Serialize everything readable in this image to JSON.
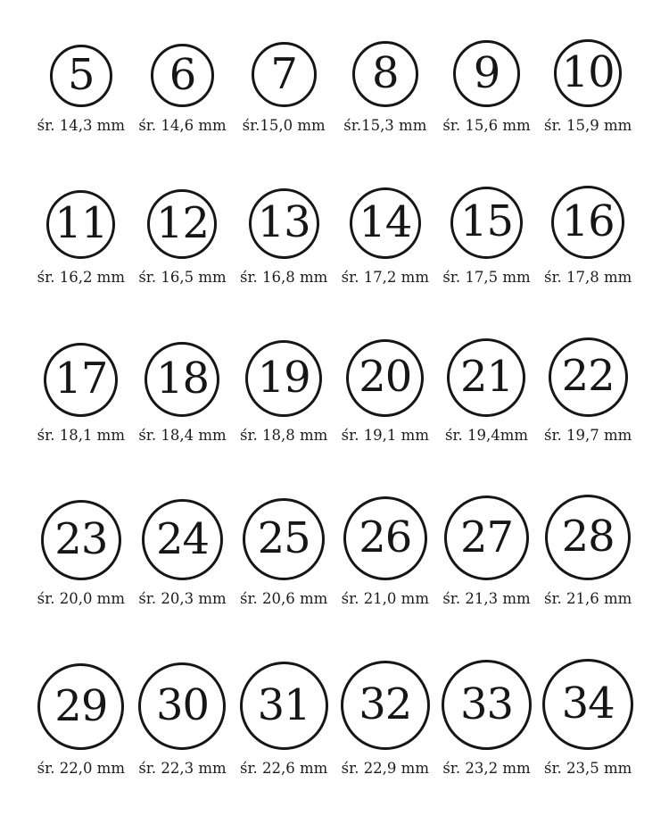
{
  "page": {
    "background_color": "#ffffff",
    "ink_color": "#161616"
  },
  "ring_size_chart": {
    "diameter_abbreviation": "śr.",
    "unit": "mm",
    "columns": 6,
    "rows": 5,
    "sizes": [
      {
        "size": "5",
        "diameter_mm": 14.3,
        "label": "śr. 14,3 mm"
      },
      {
        "size": "6",
        "diameter_mm": 14.6,
        "label": "śr. 14,6 mm"
      },
      {
        "size": "7",
        "diameter_mm": 15.0,
        "label": "śr.15,0 mm"
      },
      {
        "size": "8",
        "diameter_mm": 15.3,
        "label": "śr.15,3 mm"
      },
      {
        "size": "9",
        "diameter_mm": 15.6,
        "label": "śr. 15,6 mm"
      },
      {
        "size": "10",
        "diameter_mm": 15.9,
        "label": "śr. 15,9 mm"
      },
      {
        "size": "11",
        "diameter_mm": 16.2,
        "label": "śr. 16,2 mm"
      },
      {
        "size": "12",
        "diameter_mm": 16.5,
        "label": "śr. 16,5 mm"
      },
      {
        "size": "13",
        "diameter_mm": 16.8,
        "label": "śr. 16,8 mm"
      },
      {
        "size": "14",
        "diameter_mm": 17.2,
        "label": "śr. 17,2 mm"
      },
      {
        "size": "15",
        "diameter_mm": 17.5,
        "label": "śr. 17,5 mm"
      },
      {
        "size": "16",
        "diameter_mm": 17.8,
        "label": "śr. 17,8 mm"
      },
      {
        "size": "17",
        "diameter_mm": 18.1,
        "label": "śr. 18,1 mm"
      },
      {
        "size": "18",
        "diameter_mm": 18.4,
        "label": "śr. 18,4 mm"
      },
      {
        "size": "19",
        "diameter_mm": 18.8,
        "label": "śr. 18,8 mm"
      },
      {
        "size": "20",
        "diameter_mm": 19.1,
        "label": "śr. 19,1 mm"
      },
      {
        "size": "21",
        "diameter_mm": 19.4,
        "label": "śr. 19,4mm"
      },
      {
        "size": "22",
        "diameter_mm": 19.7,
        "label": "śr. 19,7 mm"
      },
      {
        "size": "23",
        "diameter_mm": 20.0,
        "label": "śr. 20,0 mm"
      },
      {
        "size": "24",
        "diameter_mm": 20.3,
        "label": "śr. 20,3 mm"
      },
      {
        "size": "25",
        "diameter_mm": 20.6,
        "label": "śr. 20,6 mm"
      },
      {
        "size": "26",
        "diameter_mm": 21.0,
        "label": "śr. 21,0 mm"
      },
      {
        "size": "27",
        "diameter_mm": 21.3,
        "label": "śr. 21,3 mm"
      },
      {
        "size": "28",
        "diameter_mm": 21.6,
        "label": "śr. 21,6 mm"
      },
      {
        "size": "29",
        "diameter_mm": 22.0,
        "label": "śr. 22,0 mm"
      },
      {
        "size": "30",
        "diameter_mm": 22.3,
        "label": "śr. 22,3 mm"
      },
      {
        "size": "31",
        "diameter_mm": 22.6,
        "label": "śr. 22,6 mm"
      },
      {
        "size": "32",
        "diameter_mm": 22.9,
        "label": "śr. 22,9 mm"
      },
      {
        "size": "33",
        "diameter_mm": 23.2,
        "label": "śr. 23,2 mm"
      },
      {
        "size": "34",
        "diameter_mm": 23.5,
        "label": "śr. 23,5 mm"
      }
    ]
  }
}
